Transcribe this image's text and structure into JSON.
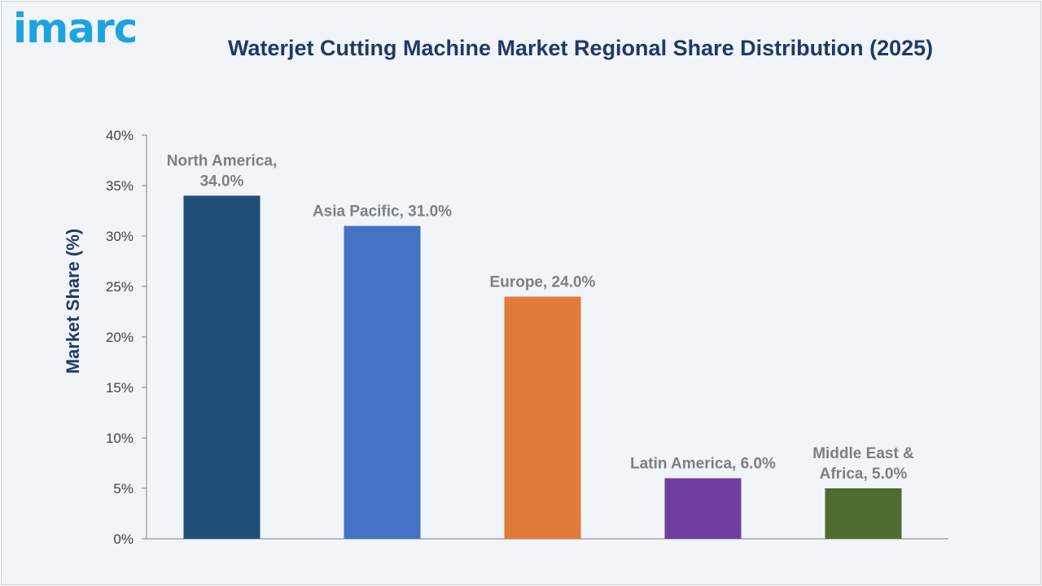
{
  "brand": {
    "logo_text": "imarc",
    "logo_color": "#1fa3e0"
  },
  "chart_data": {
    "type": "bar",
    "title": "Waterjet Cutting Machine Market Regional Share Distribution (2025)",
    "xlabel": "",
    "ylabel": "Market Share (%)",
    "ylim": [
      0,
      40
    ],
    "yticks": [
      "0%",
      "5%",
      "10%",
      "15%",
      "20%",
      "25%",
      "30%",
      "35%",
      "40%"
    ],
    "categories": [
      "North America",
      "Asia Pacific",
      "Europe",
      "Latin America",
      "Middle East & Africa"
    ],
    "values": [
      34.0,
      31.0,
      24.0,
      6.0,
      5.0
    ],
    "data_labels": [
      [
        "North America,",
        "34.0%"
      ],
      [
        "Asia Pacific, 31.0%"
      ],
      [
        "Europe, 24.0%"
      ],
      [
        "Latin America, 6.0%"
      ],
      [
        "Middle East &",
        "Africa, 5.0%"
      ]
    ],
    "colors": [
      "#1f4e79",
      "#4472c4",
      "#e07b39",
      "#6f3fa0",
      "#4f6b2f"
    ],
    "grid": false,
    "legend": "none"
  }
}
